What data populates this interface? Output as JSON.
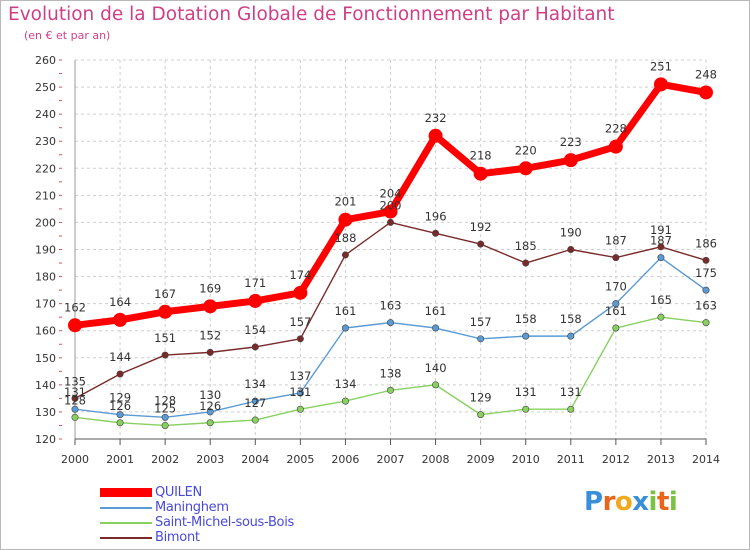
{
  "header": {
    "title": "Evolution de la Dotation Globale de Fonctionnement par Habitant",
    "subtitle": "(en € et par an)"
  },
  "chart_data": {
    "type": "line",
    "x": [
      "2000",
      "2001",
      "2002",
      "2003",
      "2004",
      "2005",
      "2006",
      "2007",
      "2008",
      "2009",
      "2010",
      "2011",
      "2012",
      "2013",
      "2014"
    ],
    "ylim": [
      120,
      260
    ],
    "yticks": [
      120,
      130,
      140,
      150,
      160,
      170,
      180,
      190,
      200,
      210,
      220,
      230,
      240,
      250,
      260
    ],
    "grid": true,
    "series": [
      {
        "name": "QUILEN",
        "color": "#ff0000",
        "values": [
          162,
          164,
          167,
          169,
          171,
          174,
          201,
          204,
          232,
          218,
          220,
          223,
          228,
          251,
          248
        ]
      },
      {
        "name": "Maninghem",
        "color": "#5b9bd5",
        "values": [
          131,
          129,
          128,
          130,
          134,
          137,
          161,
          163,
          161,
          157,
          158,
          158,
          170,
          187,
          175
        ]
      },
      {
        "name": "Saint-Michel-sous-Bois",
        "color": "#88d060",
        "values": [
          128,
          126,
          125,
          126,
          127,
          131,
          134,
          138,
          140,
          129,
          131,
          131,
          161,
          165,
          163
        ]
      },
      {
        "name": "Bimont",
        "color": "#7a2a2a",
        "values": [
          135,
          144,
          151,
          152,
          154,
          157,
          188,
          200,
          196,
          192,
          185,
          190,
          187,
          191,
          186
        ]
      }
    ]
  },
  "legend": {
    "items": [
      {
        "label": "QUILEN",
        "color": "#ff0000"
      },
      {
        "label": "Maninghem",
        "color": "#5b9bd5"
      },
      {
        "label": "Saint-Michel-sous-Bois",
        "color": "#88d060"
      },
      {
        "label": "Bimont",
        "color": "#7a2a2a"
      }
    ]
  },
  "brand": {
    "letters": [
      "P",
      "r",
      "o",
      "x",
      "i",
      "t",
      "i"
    ],
    "colors": [
      "#3a8fd9",
      "#e8651a",
      "#f0a81c",
      "#3a8fd9",
      "#7cc242",
      "#e8651a",
      "#7cc242"
    ]
  }
}
